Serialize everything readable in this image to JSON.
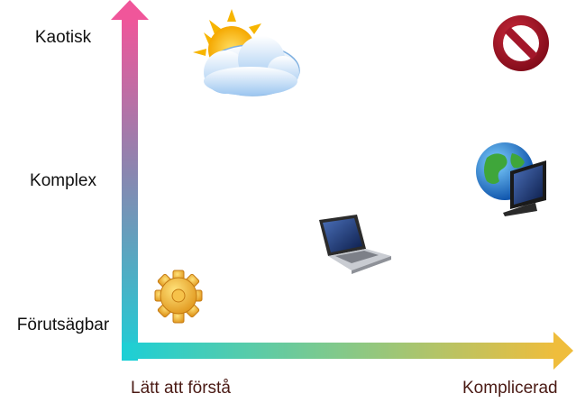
{
  "y_axis": {
    "levels": [
      "Kaotisk",
      "Komplex",
      "Förutsägbar"
    ]
  },
  "x_axis": {
    "start_label": "Lätt att förstå",
    "end_label": "Komplicerad"
  },
  "colors": {
    "y_axis_gradient": [
      "#f0569a",
      "#1ccfd6"
    ],
    "x_axis_gradient": [
      "#1ccfd6",
      "#efbd3c"
    ],
    "x_label_color": "#4a1a14"
  },
  "icons": {
    "chaotic": "weather-sun-cloud-icon",
    "forbidden": "no-entry-icon",
    "complex": "globe-monitor-icon",
    "complicated": "laptop-icon",
    "predictable": "gear-icon"
  }
}
